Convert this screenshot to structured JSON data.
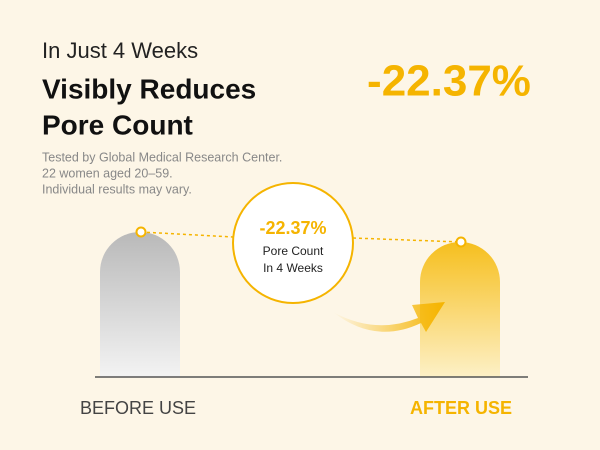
{
  "header": {
    "kicker": "In Just 4 Weeks",
    "title_lines": [
      "Visibly Reduces",
      "Pore Count"
    ],
    "headline_stat": "-22.37%"
  },
  "notes": [
    "Tested by Global Medical Research Center.",
    "22 women aged 20–59.",
    "Individual results may vary."
  ],
  "callout": {
    "value": "-22.37%",
    "label_lines": [
      "Pore Count",
      "In 4 Weeks"
    ]
  },
  "labels": {
    "before": "BEFORE USE",
    "after": "AFTER USE"
  }
}
